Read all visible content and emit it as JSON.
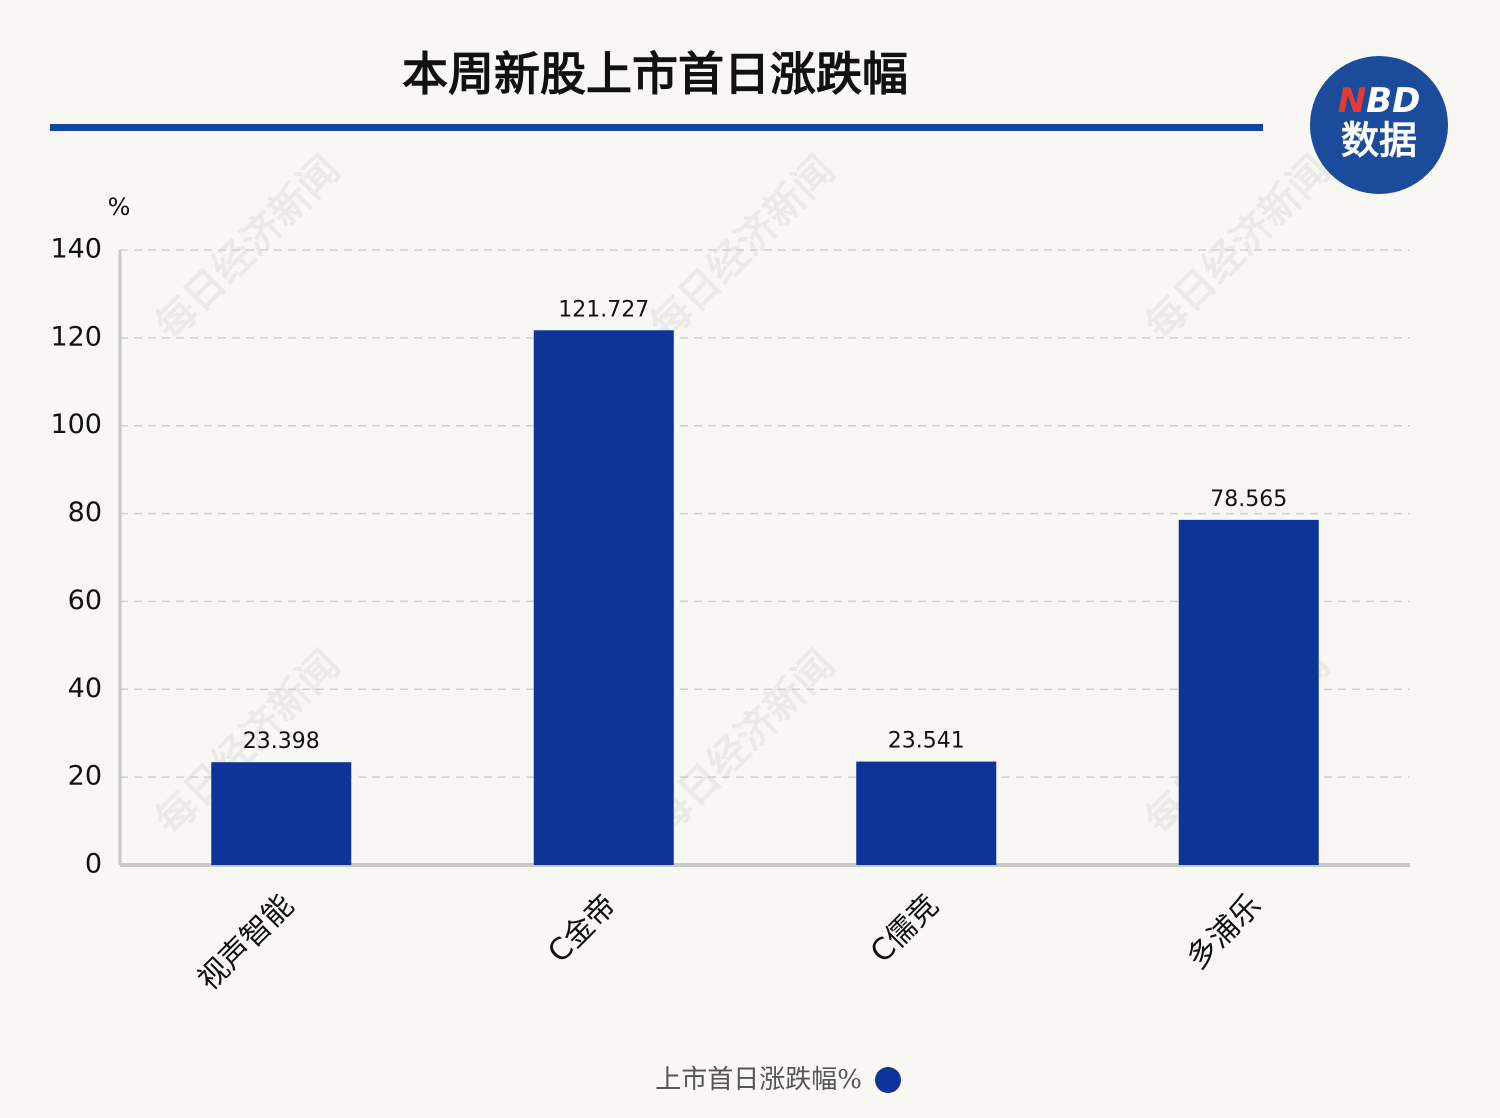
{
  "chart_data": {
    "type": "bar",
    "title": "本周新股上市首日涨跌幅",
    "y_label": "%",
    "logo": {
      "brand": "NBD",
      "label": "数据"
    },
    "watermark": "每日经济新闻",
    "categories": [
      "视声智能",
      "C金帝",
      "C儒竞",
      "多浦乐"
    ],
    "series": [
      {
        "name": "上市首日涨跌幅%",
        "color": "#0d3499",
        "values": [
          23.398,
          121.727,
          23.541,
          78.565
        ]
      }
    ],
    "ylim": [
      0,
      140
    ],
    "yticks": [
      0,
      20,
      40,
      60,
      80,
      100,
      120,
      140
    ],
    "grid": true,
    "legend": "bottom"
  }
}
